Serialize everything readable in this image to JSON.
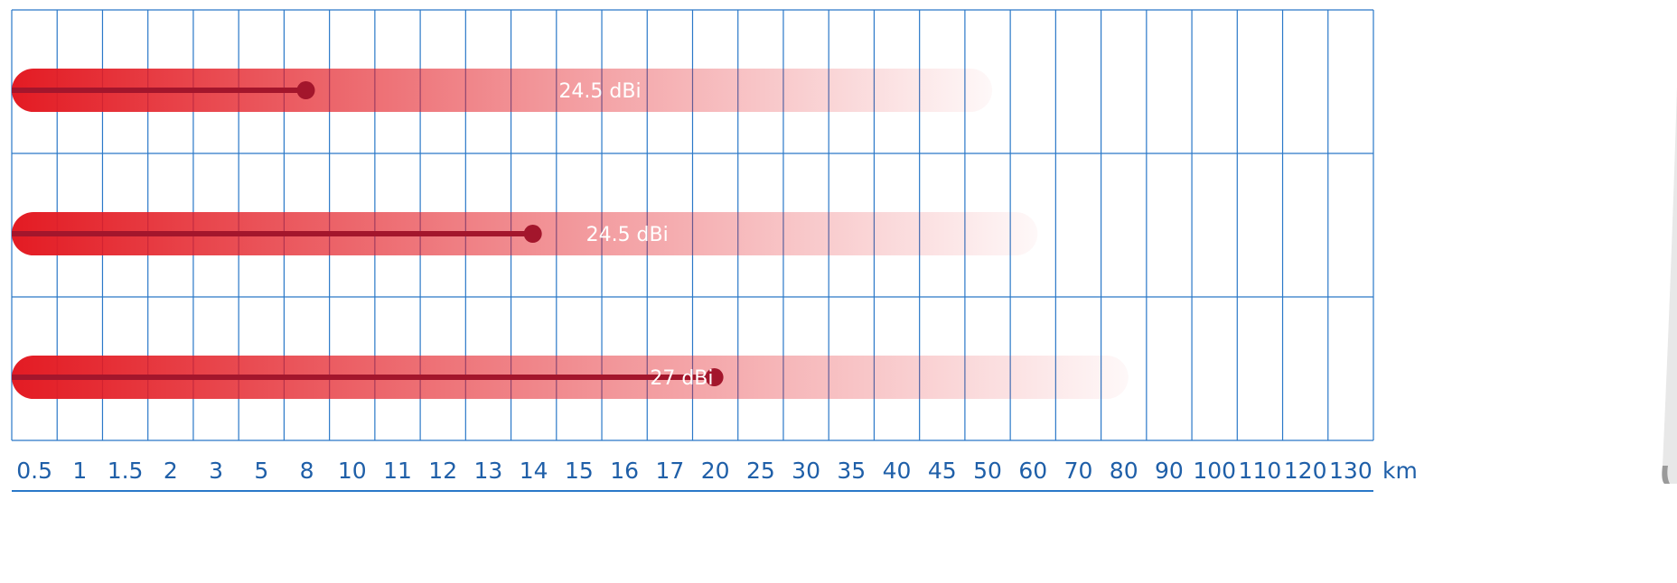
{
  "chart_data": {
    "type": "bar",
    "orientation": "horizontal",
    "x_unit": "km",
    "categories": [
      "0.5",
      "1",
      "1.5",
      "2",
      "3",
      "5",
      "8",
      "10",
      "11",
      "12",
      "13",
      "14",
      "15",
      "16",
      "17",
      "20",
      "25",
      "30",
      "35",
      "40",
      "45",
      "50",
      "60",
      "70",
      "80",
      "90",
      "100",
      "110",
      "120",
      "130"
    ],
    "bars": [
      {
        "label": "24.5 dBi",
        "value": 8,
        "extent": 50
      },
      {
        "label": "24.5 dBi",
        "value": 14,
        "extent": 60
      },
      {
        "label": "27 dBi",
        "value": 20,
        "extent": 80
      }
    ],
    "grid": true
  },
  "colors": {
    "bar": "#e31b23",
    "range_line": "#a3162c",
    "grid": "#2a78c8",
    "axis_text": "#1f5fa8"
  }
}
